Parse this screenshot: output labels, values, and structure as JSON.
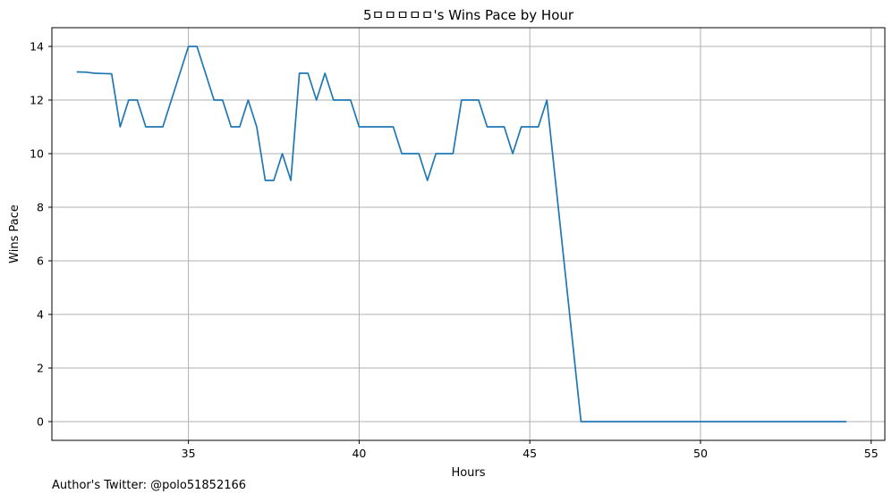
{
  "chart_data": {
    "type": "line",
    "title": "5ㅁㅁㅁㅁㅁ's Wins Pace by Hour",
    "xlabel": "Hours",
    "ylabel": "Wins Pace",
    "xlim": [
      31.0,
      55.4
    ],
    "ylim": [
      -0.7,
      14.7
    ],
    "xticks": [
      35,
      40,
      45,
      50,
      55
    ],
    "yticks": [
      0,
      2,
      4,
      6,
      8,
      10,
      12,
      14
    ],
    "grid": true,
    "line_color": "#1f77b4",
    "series": [
      {
        "x": [
          31.75,
          32.0,
          32.25,
          32.5,
          32.75,
          33.0,
          33.25,
          33.5,
          33.75,
          34.0,
          34.25,
          34.5,
          34.75,
          35.0,
          35.25,
          35.5,
          35.75,
          36.0,
          36.25,
          36.5,
          36.75,
          37.0,
          37.25,
          37.5,
          37.75,
          38.0,
          38.25,
          38.5,
          38.75,
          39.0,
          39.25,
          39.5,
          39.75,
          40.0,
          40.25,
          40.5,
          40.75,
          41.0,
          41.25,
          41.5,
          41.75,
          42.0,
          42.25,
          42.5,
          42.75,
          43.0,
          43.25,
          43.5,
          43.75,
          44.0,
          44.25,
          44.5,
          44.75,
          45.0,
          45.25,
          45.5,
          46.5,
          54.25
        ],
        "y": [
          13.05,
          13.04,
          13.0,
          12.99,
          12.98,
          11.0,
          12.0,
          12.0,
          11.0,
          11.0,
          11.0,
          12.0,
          13.0,
          14.0,
          14.0,
          13.0,
          12.0,
          12.0,
          11.0,
          11.0,
          12.0,
          11.0,
          9.0,
          9.0,
          10.0,
          9.0,
          13.0,
          13.0,
          12.0,
          13.0,
          12.0,
          12.0,
          12.0,
          11.0,
          11.0,
          11.0,
          11.0,
          11.0,
          10.0,
          10.0,
          10.0,
          9.0,
          10.0,
          10.0,
          10.0,
          12.0,
          12.0,
          12.0,
          11.0,
          11.0,
          11.0,
          10.0,
          11.0,
          11.0,
          11.0,
          12.0,
          0.0,
          0.0
        ]
      }
    ]
  },
  "footer": {
    "text": "Author's Twitter: @polo51852166"
  }
}
